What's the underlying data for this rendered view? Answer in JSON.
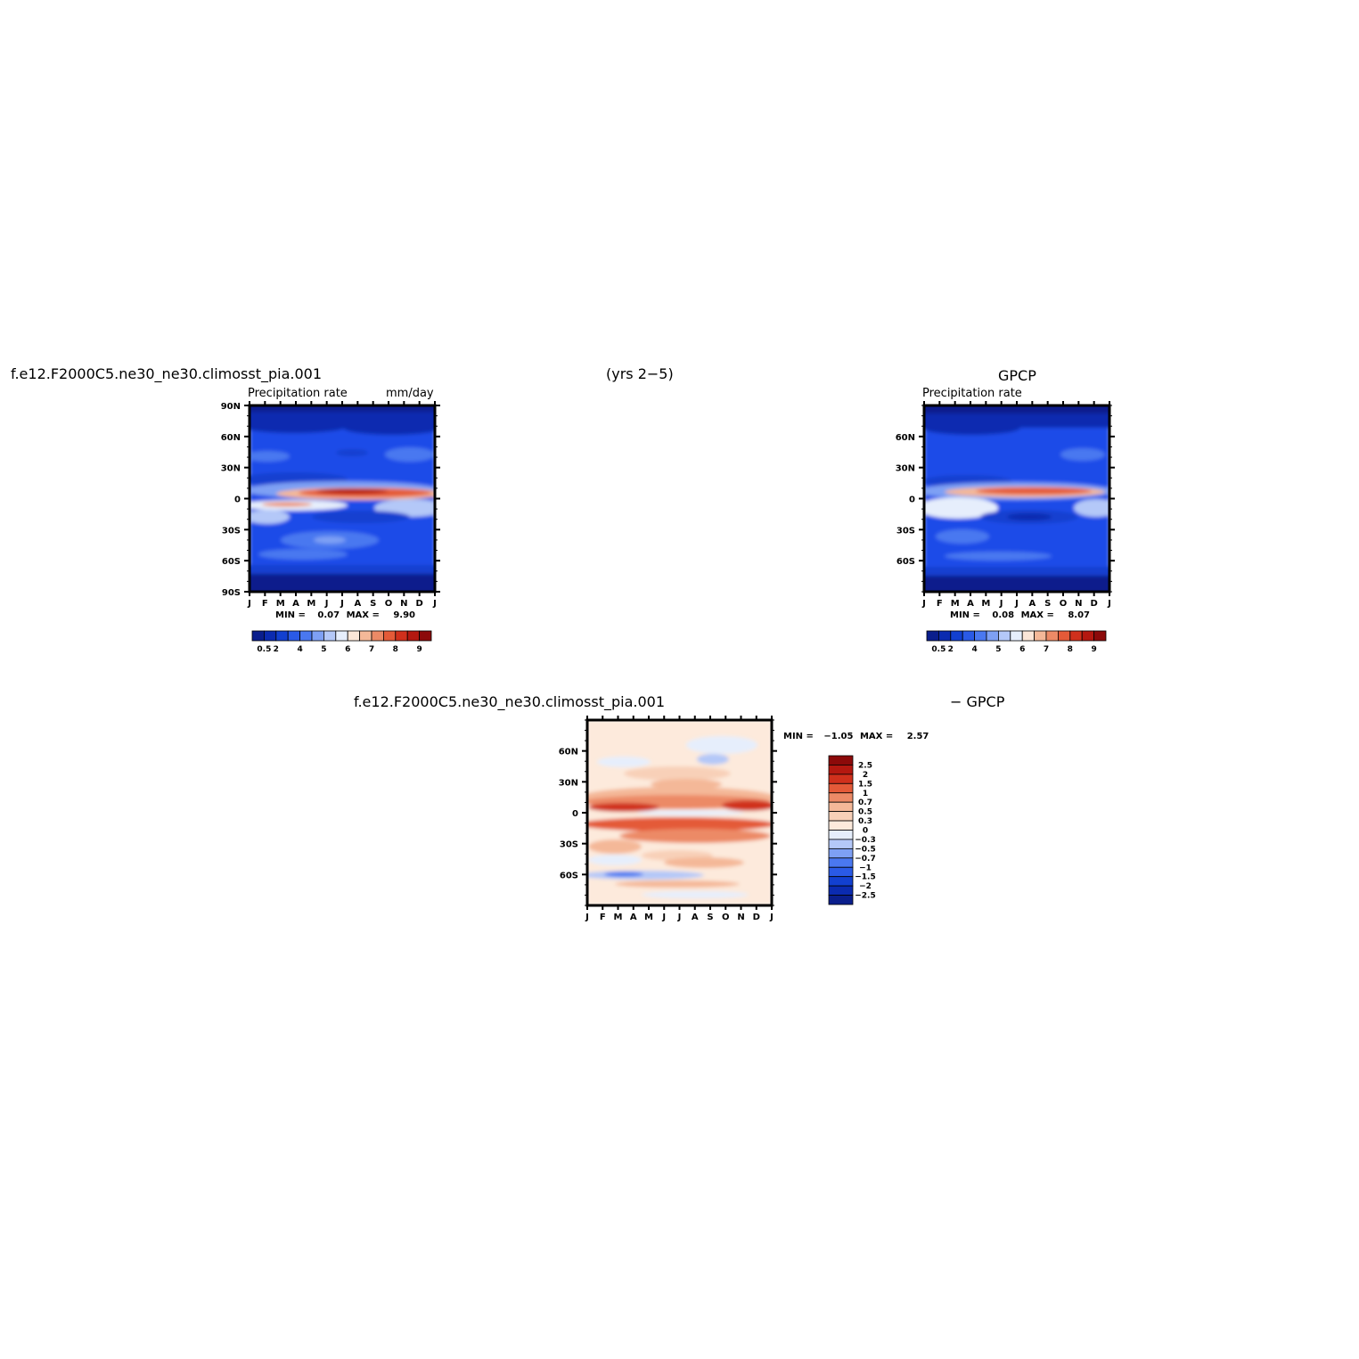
{
  "header": {
    "case_name": "f.e12.F2000C5.ne30_ne30.climosst_pia.001",
    "years": "(yrs 2−5)",
    "obs_title": "GPCP"
  },
  "chart_data": [
    {
      "type": "heatmap",
      "name": "model",
      "title": "f.e12.F2000C5.ne30_ne30.climosst_pia.001",
      "subtitle_left": "Precipitation rate",
      "subtitle_right": "mm/day",
      "x_ticks": [
        "J",
        "F",
        "M",
        "A",
        "M",
        "J",
        "J",
        "A",
        "S",
        "O",
        "N",
        "D",
        "J"
      ],
      "y_ticks": [
        "90N",
        "60N",
        "30N",
        "0",
        "30S",
        "60S",
        "90S"
      ],
      "min_label": "MIN =",
      "min_value": "0.07",
      "max_label": "MAX =",
      "max_value": "9.90",
      "colorbar_labels": [
        "0.5",
        "2",
        "4",
        "5",
        "6",
        "7",
        "8",
        "9"
      ]
    },
    {
      "type": "heatmap",
      "name": "obs",
      "title": "GPCP",
      "subtitle_left": "Precipitation rate",
      "x_ticks": [
        "J",
        "F",
        "M",
        "A",
        "M",
        "J",
        "J",
        "A",
        "S",
        "O",
        "N",
        "D",
        "J"
      ],
      "y_ticks": [
        "60N",
        "30N",
        "0",
        "30S",
        "60S"
      ],
      "min_label": "MIN =",
      "min_value": "0.08",
      "max_label": "MAX =",
      "max_value": "8.07",
      "colorbar_labels": [
        "0.5",
        "2",
        "4",
        "5",
        "6",
        "7",
        "8",
        "9"
      ]
    },
    {
      "type": "heatmap",
      "name": "difference",
      "title_left": "f.e12.F2000C5.ne30_ne30.climosst_pia.001",
      "title_right": "− GPCP",
      "x_ticks": [
        "J",
        "F",
        "M",
        "A",
        "M",
        "J",
        "J",
        "A",
        "S",
        "O",
        "N",
        "D",
        "J"
      ],
      "y_ticks": [
        "60N",
        "30N",
        "0",
        "30S",
        "60S"
      ],
      "min_label": "MIN =",
      "min_value": "−1.05",
      "max_label": "MAX =",
      "max_value": "2.57",
      "colorbar_labels": [
        "2.5",
        "2",
        "1.5",
        "1",
        "0.7",
        "0.5",
        "0.3",
        "0",
        "−0.3",
        "−0.5",
        "−0.7",
        "−1",
        "−1.5",
        "−2",
        "−2.5"
      ]
    }
  ],
  "colors": {
    "precip_scale": [
      "#0a1e8c",
      "#0b2bb0",
      "#1240d0",
      "#2a5ae6",
      "#4a78f0",
      "#7ea0f4",
      "#b4c8f8",
      "#e6eefc",
      "#fbe6d8",
      "#f4b898",
      "#ec8a66",
      "#e45a38",
      "#d0301c",
      "#b41810",
      "#8c0a0a"
    ],
    "diff_scale_top_to_bottom": [
      "#8c0a0a",
      "#b41810",
      "#d0301c",
      "#e45a38",
      "#ec8a66",
      "#f4b898",
      "#f8d0b8",
      "#fdeadc",
      "#e6eefc",
      "#b4c8f8",
      "#7ea0f4",
      "#4a78f0",
      "#2a5ae6",
      "#1240d0",
      "#0b2bb0",
      "#0a1e8c"
    ]
  }
}
